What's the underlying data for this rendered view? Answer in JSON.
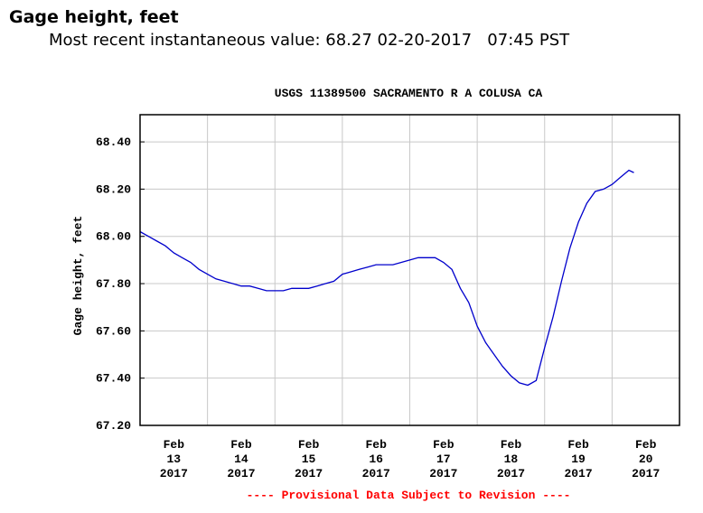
{
  "heading": "Gage height, feet",
  "subheading": "Most recent instantaneous value: 68.27 02-20-2017   07:45 PST",
  "chart_data": {
    "type": "line",
    "title": "USGS 11389500 SACRAMENTO R A COLUSA CA",
    "ylabel": "Gage height, feet",
    "footnote": "---- Provisional Data Subject to Revision ----",
    "categories": [
      [
        "Feb",
        "13",
        "2017"
      ],
      [
        "Feb",
        "14",
        "2017"
      ],
      [
        "Feb",
        "15",
        "2017"
      ],
      [
        "Feb",
        "16",
        "2017"
      ],
      [
        "Feb",
        "17",
        "2017"
      ],
      [
        "Feb",
        "18",
        "2017"
      ],
      [
        "Feb",
        "19",
        "2017"
      ],
      [
        "Feb",
        "20",
        "2017"
      ]
    ],
    "xlim": [
      "2017-02-13 00:00",
      "2017-02-21 00:00"
    ],
    "ylim": [
      67.2,
      68.515
    ],
    "yticks": [
      {
        "value": 67.2,
        "label": "67.20"
      },
      {
        "value": 67.4,
        "label": "67.40"
      },
      {
        "value": 67.6,
        "label": "67.60"
      },
      {
        "value": 67.8,
        "label": "67.80"
      },
      {
        "value": 68.0,
        "label": "68.00"
      },
      {
        "value": 68.2,
        "label": "68.20"
      },
      {
        "value": 68.4,
        "label": "68.40"
      }
    ],
    "grid": true,
    "x": [
      "2017-02-13 00:00",
      "2017-02-13 03:00",
      "2017-02-13 06:00",
      "2017-02-13 09:00",
      "2017-02-13 12:00",
      "2017-02-13 15:00",
      "2017-02-13 18:00",
      "2017-02-13 21:00",
      "2017-02-14 00:00",
      "2017-02-14 03:00",
      "2017-02-14 06:00",
      "2017-02-14 09:00",
      "2017-02-14 12:00",
      "2017-02-14 15:00",
      "2017-02-14 18:00",
      "2017-02-14 21:00",
      "2017-02-15 00:00",
      "2017-02-15 03:00",
      "2017-02-15 06:00",
      "2017-02-15 09:00",
      "2017-02-15 12:00",
      "2017-02-15 15:00",
      "2017-02-15 18:00",
      "2017-02-15 21:00",
      "2017-02-16 00:00",
      "2017-02-16 03:00",
      "2017-02-16 06:00",
      "2017-02-16 09:00",
      "2017-02-16 12:00",
      "2017-02-16 15:00",
      "2017-02-16 18:00",
      "2017-02-16 21:00",
      "2017-02-17 00:00",
      "2017-02-17 03:00",
      "2017-02-17 06:00",
      "2017-02-17 09:00",
      "2017-02-17 12:00",
      "2017-02-17 15:00",
      "2017-02-17 18:00",
      "2017-02-17 21:00",
      "2017-02-18 00:00",
      "2017-02-18 03:00",
      "2017-02-18 06:00",
      "2017-02-18 09:00",
      "2017-02-18 12:00",
      "2017-02-18 15:00",
      "2017-02-18 18:00",
      "2017-02-18 21:00",
      "2017-02-19 00:00",
      "2017-02-19 03:00",
      "2017-02-19 06:00",
      "2017-02-19 09:00",
      "2017-02-19 12:00",
      "2017-02-19 15:00",
      "2017-02-19 18:00",
      "2017-02-19 21:00",
      "2017-02-20 00:00",
      "2017-02-20 03:00",
      "2017-02-20 06:00",
      "2017-02-20 07:45"
    ],
    "series": [
      {
        "color": "#0000cc",
        "values": [
          68.02,
          68.0,
          67.98,
          67.96,
          67.93,
          67.91,
          67.89,
          67.86,
          67.84,
          67.82,
          67.81,
          67.8,
          67.79,
          67.79,
          67.78,
          67.77,
          67.77,
          67.77,
          67.78,
          67.78,
          67.78,
          67.79,
          67.8,
          67.81,
          67.84,
          67.85,
          67.86,
          67.87,
          67.88,
          67.88,
          67.88,
          67.89,
          67.9,
          67.91,
          67.91,
          67.91,
          67.89,
          67.86,
          67.78,
          67.72,
          67.62,
          67.55,
          67.5,
          67.45,
          67.41,
          67.38,
          67.37,
          67.39,
          67.53,
          67.66,
          67.81,
          67.95,
          68.06,
          68.14,
          68.19,
          68.2,
          68.22,
          68.25,
          68.28,
          68.27
        ]
      }
    ]
  }
}
